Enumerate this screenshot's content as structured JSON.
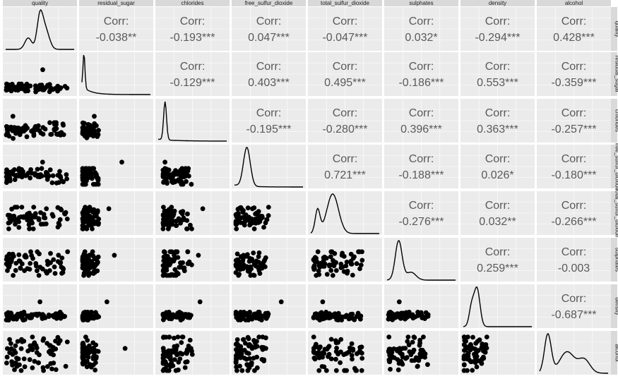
{
  "chart_data": {
    "type": "scatter_matrix",
    "variables": [
      "quality",
      "residual_sugar",
      "chlorides",
      "free_sulfur_dioxide",
      "total_sulfur_dioxide",
      "sulphates",
      "density",
      "alcohol"
    ],
    "column_labels": [
      "quality",
      "residual_sugar",
      "chlorides",
      "free_sulfur_dioxide",
      "total_sulfur_dioxide",
      "sulphates",
      "density",
      "alcohol"
    ],
    "row_labels": [
      "quality",
      "residual_sugar",
      "chlorides",
      "free_sulfur_dioxide",
      "total_sulfur_dioxide",
      "sulphates",
      "density",
      "alcohol"
    ],
    "corr_label": "Corr:",
    "correlations": [
      {
        "row": 0,
        "col": 1,
        "value": "-0.038**"
      },
      {
        "row": 0,
        "col": 2,
        "value": "-0.193***"
      },
      {
        "row": 0,
        "col": 3,
        "value": "0.047***"
      },
      {
        "row": 0,
        "col": 4,
        "value": "-0.047***"
      },
      {
        "row": 0,
        "col": 5,
        "value": "0.032*"
      },
      {
        "row": 0,
        "col": 6,
        "value": "-0.294***"
      },
      {
        "row": 0,
        "col": 7,
        "value": "0.428***"
      },
      {
        "row": 1,
        "col": 2,
        "value": "-0.129***"
      },
      {
        "row": 1,
        "col": 3,
        "value": "0.403***"
      },
      {
        "row": 1,
        "col": 4,
        "value": "0.495***"
      },
      {
        "row": 1,
        "col": 5,
        "value": "-0.186***"
      },
      {
        "row": 1,
        "col": 6,
        "value": "0.553***"
      },
      {
        "row": 1,
        "col": 7,
        "value": "-0.359***"
      },
      {
        "row": 2,
        "col": 3,
        "value": "-0.195***"
      },
      {
        "row": 2,
        "col": 4,
        "value": "-0.280***"
      },
      {
        "row": 2,
        "col": 5,
        "value": "0.396***"
      },
      {
        "row": 2,
        "col": 6,
        "value": "0.363***"
      },
      {
        "row": 2,
        "col": 7,
        "value": "-0.257***"
      },
      {
        "row": 3,
        "col": 4,
        "value": "0.721***"
      },
      {
        "row": 3,
        "col": 5,
        "value": "-0.188***"
      },
      {
        "row": 3,
        "col": 6,
        "value": "0.026*"
      },
      {
        "row": 3,
        "col": 7,
        "value": "-0.180***"
      },
      {
        "row": 4,
        "col": 5,
        "value": "-0.276***"
      },
      {
        "row": 4,
        "col": 6,
        "value": "0.032**"
      },
      {
        "row": 4,
        "col": 7,
        "value": "-0.266***"
      },
      {
        "row": 5,
        "col": 6,
        "value": "0.259***"
      },
      {
        "row": 5,
        "col": 7,
        "value": "-0.003"
      },
      {
        "row": 6,
        "col": 7,
        "value": "-0.687***"
      }
    ],
    "grid": true,
    "colors": {
      "panel_bg": "#ebebeb",
      "grid": "#ffffff",
      "strip_bg": "#d9d9d9",
      "ink": "#000000",
      "corr_text": "#595959"
    }
  }
}
